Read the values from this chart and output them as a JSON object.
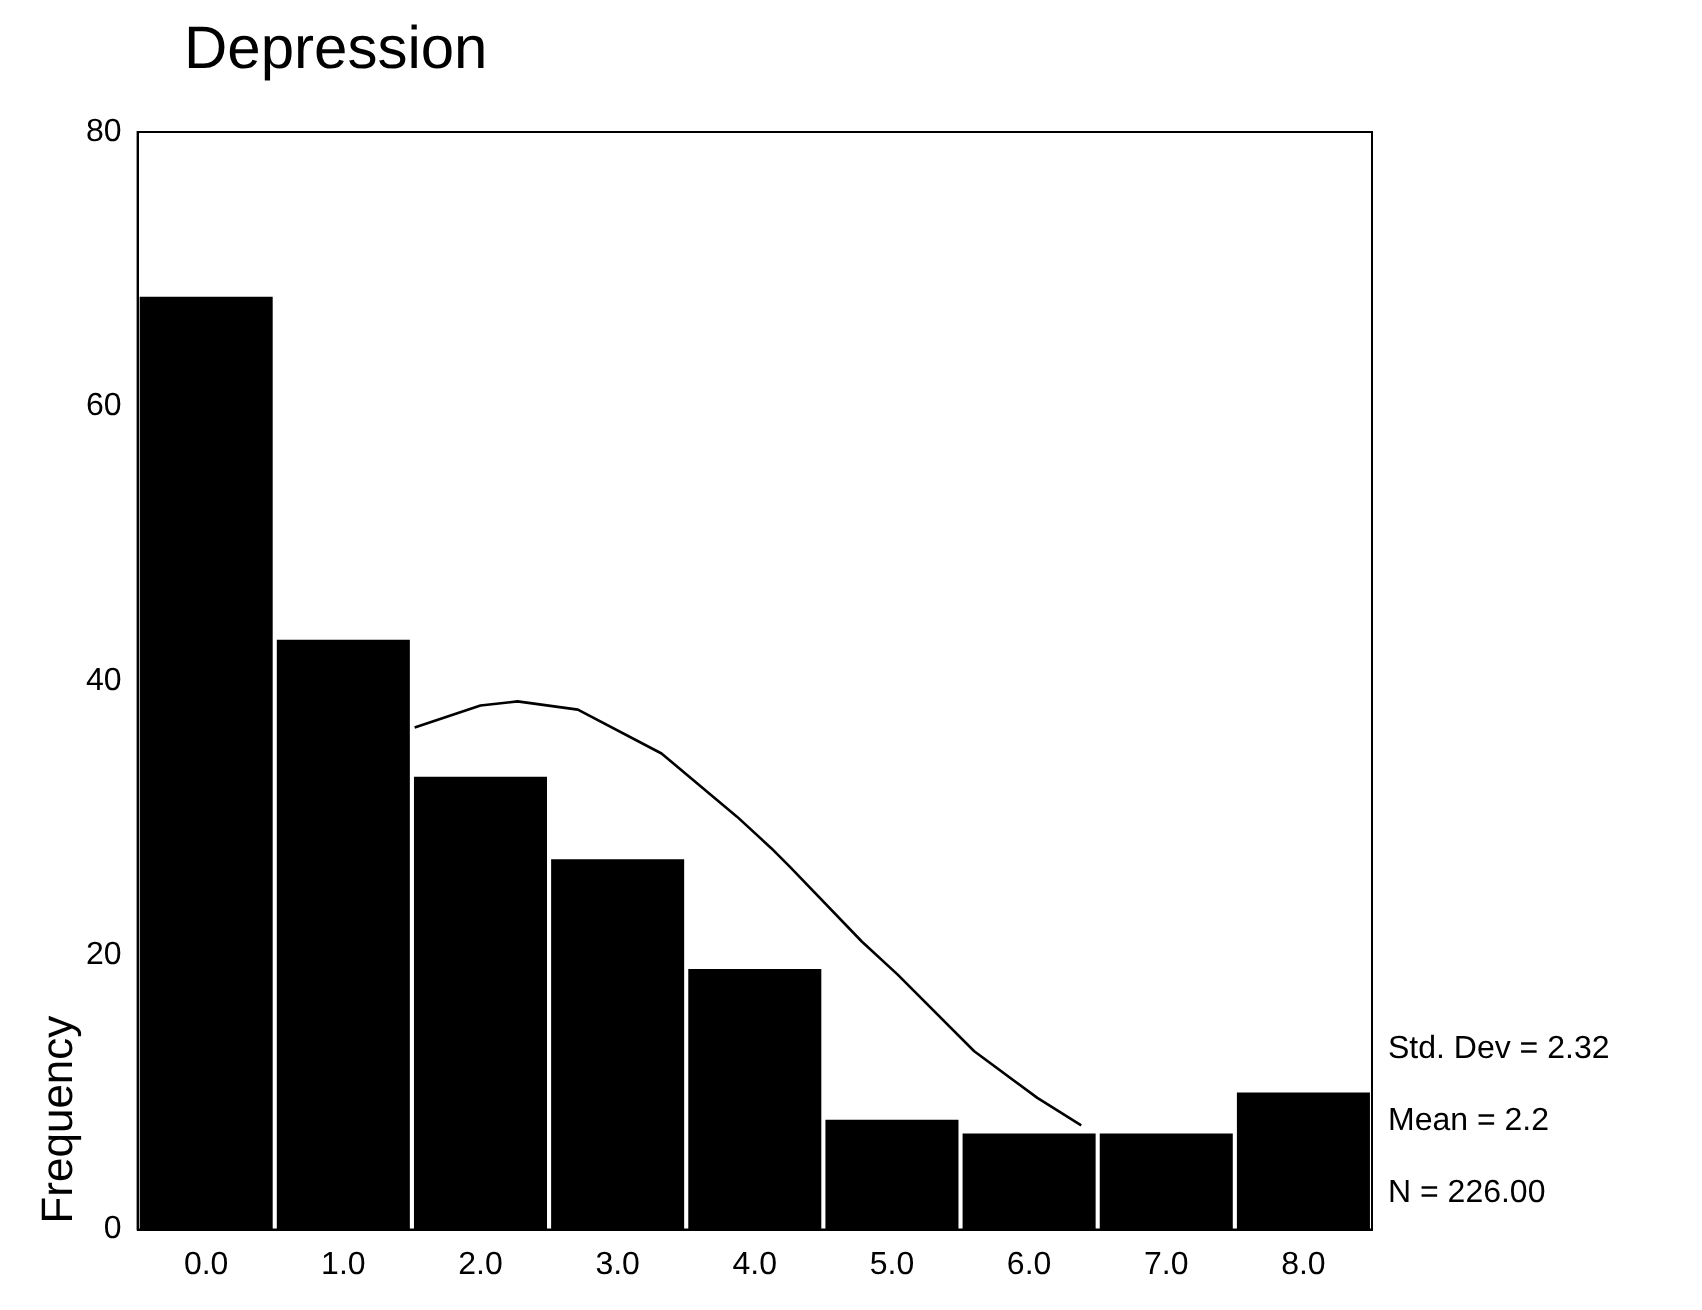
{
  "chart_data": {
    "type": "histogram",
    "title": "Depression",
    "ylabel": "Frequency",
    "bins": [
      -0.5,
      0.5,
      1.5,
      2.5,
      3.5,
      4.5,
      5.5,
      6.5,
      7.5,
      8.5
    ],
    "values": [
      68,
      43,
      33,
      27,
      19,
      8,
      7,
      7,
      10
    ],
    "color": "#000000",
    "series": [
      {
        "type": "line",
        "color": "#000000",
        "x": [
          1.52,
          2.0,
          2.27,
          2.71,
          3.32,
          3.87,
          4.12,
          4.26,
          4.78,
          5.04,
          5.6,
          6.06,
          6.38
        ],
        "values": [
          36.6,
          38.2,
          38.5,
          37.9,
          34.7,
          30.1,
          27.8,
          26.4,
          21.0,
          18.6,
          13.0,
          9.6,
          7.6
        ]
      }
    ],
    "marker": "none",
    "xlim": [
      -0.5,
      8.5
    ],
    "xticks": [
      {
        "value": 0,
        "label": "0.0"
      },
      {
        "value": 1,
        "label": "1.0"
      },
      {
        "value": 2,
        "label": "2.0"
      },
      {
        "value": 3,
        "label": "3.0"
      },
      {
        "value": 4,
        "label": "4.0"
      },
      {
        "value": 5,
        "label": "5.0"
      },
      {
        "value": 6,
        "label": "6.0"
      },
      {
        "value": 7,
        "label": "7.0"
      },
      {
        "value": 8,
        "label": "8.0"
      }
    ],
    "ylim": [
      0,
      80
    ],
    "yticks": [
      0,
      20,
      40,
      60,
      80
    ],
    "annotations": [
      "Std. Dev = 2.32",
      "Mean = 2.2",
      "N = 226.00"
    ]
  }
}
